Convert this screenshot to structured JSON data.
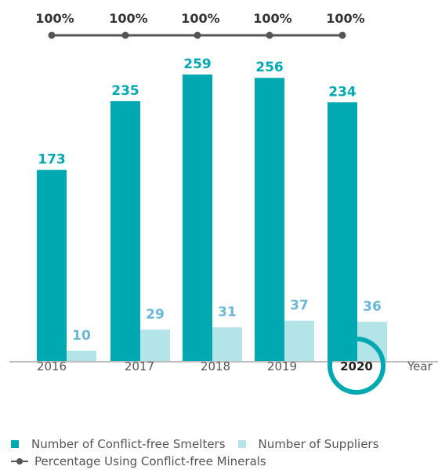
{
  "chart_data": {
    "type": "bar",
    "categories": [
      "2016",
      "2017",
      "2018",
      "2019",
      "2020"
    ],
    "highlight_category": "2020",
    "x_unit_label": "Year",
    "series": [
      {
        "name": "Number of Conflict-free Smelters",
        "values": [
          173,
          235,
          259,
          256,
          234
        ],
        "color": "#00a9b2"
      },
      {
        "name": "Number of Suppliers",
        "values": [
          10,
          29,
          31,
          37,
          36
        ],
        "color": "#b3e4e8"
      }
    ],
    "line_series": {
      "name": "Percentage Using Conflict-free Minerals",
      "labels": [
        "100%",
        "100%",
        "100%",
        "100%",
        "100%"
      ],
      "values": [
        100,
        100,
        100,
        100,
        100
      ],
      "color": "#555555"
    },
    "label_colors": {
      "primary_labels": "#00a9b2",
      "secondary_labels": "#6ab8d6",
      "axis": "#bbbbbb",
      "category_text": "#555555"
    },
    "ylim": [
      0,
      259
    ],
    "grid": false,
    "legend_position": "bottom"
  }
}
